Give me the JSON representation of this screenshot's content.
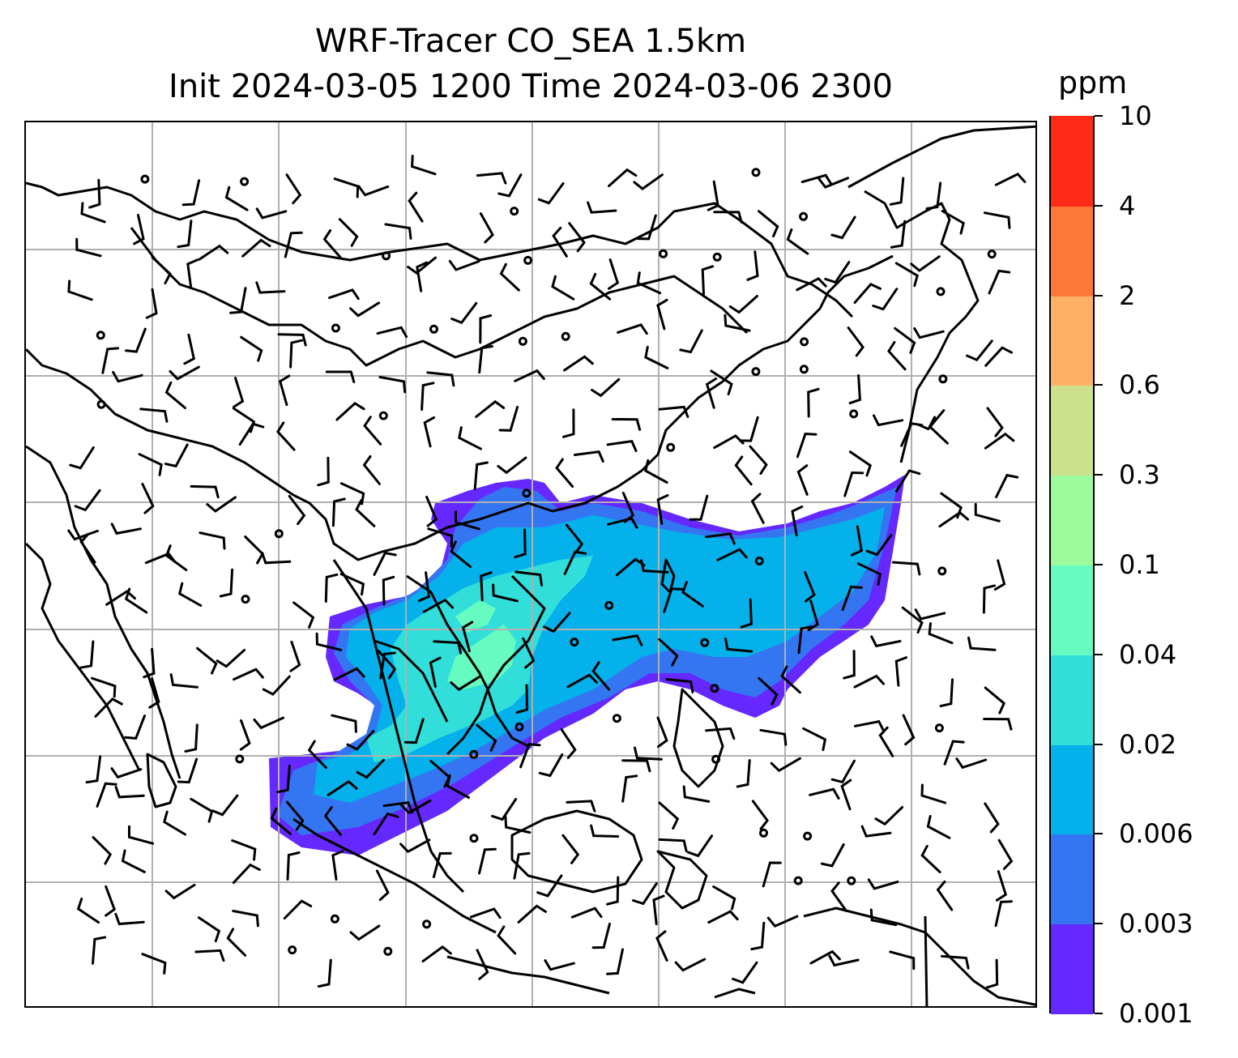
{
  "title": {
    "line1": "WRF-Tracer CO_SEA 1.5km",
    "line2": "Init 2024-03-05 1200 Time 2024-03-06 2300"
  },
  "colorbar": {
    "units": "ppm",
    "levels": [
      "0.001",
      "0.003",
      "0.006",
      "0.02",
      "0.04",
      "0.1",
      "0.3",
      "0.6",
      "2",
      "4",
      "10"
    ],
    "colors": [
      "#6528fe",
      "#3476f2",
      "#05b1ea",
      "#32deda",
      "#66fbc0",
      "#9cfb9c",
      "#cde18c",
      "#feb064",
      "#fe7838",
      "#ff2a17"
    ]
  },
  "map": {
    "gridlines": true,
    "coastline_color": "#000000",
    "wind_barbs": true
  }
}
